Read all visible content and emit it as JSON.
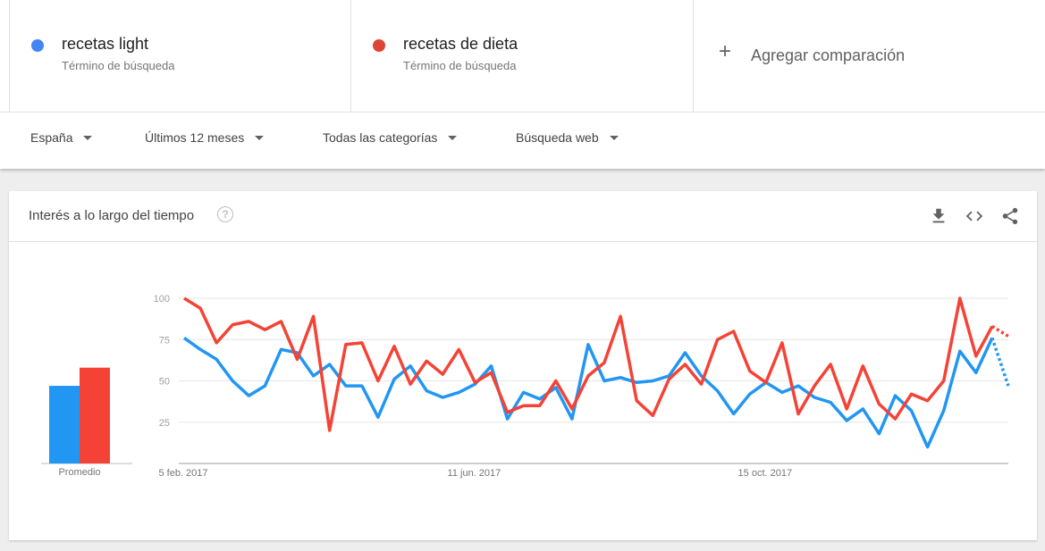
{
  "terms": [
    {
      "name": "recetas light",
      "subtitle": "Término de búsqueda",
      "color": "#4285f4"
    },
    {
      "name": "recetas de dieta",
      "subtitle": "Término de búsqueda",
      "color": "#db4437"
    }
  ],
  "add_comparison": {
    "label": "Agregar comparación",
    "icon": "plus-icon"
  },
  "filters": {
    "region": "España",
    "time": "Últimos 12 meses",
    "category": "Todas las categorías",
    "search_type": "Búsqueda web"
  },
  "card": {
    "title": "Interés a lo largo del tiempo",
    "help_icon": "?",
    "tools": [
      "download-icon",
      "embed-icon",
      "share-icon"
    ]
  },
  "chart_data": [
    {
      "type": "bar",
      "categories": [
        "Promedio"
      ],
      "series": [
        {
          "name": "recetas light",
          "values": [
            47
          ],
          "color": "#2196f3"
        },
        {
          "name": "recetas de dieta",
          "values": [
            58
          ],
          "color": "#f44336"
        }
      ],
      "ylim": [
        0,
        100
      ]
    },
    {
      "type": "line",
      "x_tick_labels": [
        "5 feb. 2017",
        "11 jun. 2017",
        "15 oct. 2017"
      ],
      "x_tick_indices": [
        0,
        18,
        36
      ],
      "y_ticks": [
        25,
        50,
        75,
        100
      ],
      "ylim": [
        0,
        100
      ],
      "grid": true,
      "partial_last_point": true,
      "series": [
        {
          "name": "recetas light",
          "color": "#2196f3",
          "values": [
            76,
            69,
            63,
            50,
            41,
            47,
            69,
            67,
            53,
            60,
            47,
            47,
            28,
            51,
            59,
            44,
            40,
            43,
            48,
            59,
            27,
            43,
            39,
            46,
            27,
            72,
            50,
            52,
            49,
            50,
            53,
            67,
            53,
            44,
            30,
            42,
            49,
            43,
            47,
            40,
            37,
            26,
            33,
            18,
            41,
            32,
            10,
            32,
            68,
            55,
            76,
            47
          ]
        },
        {
          "name": "recetas de dieta",
          "color": "#f44336",
          "values": [
            100,
            94,
            73,
            84,
            86,
            81,
            86,
            63,
            89,
            20,
            72,
            73,
            50,
            71,
            48,
            62,
            54,
            69,
            49,
            55,
            31,
            35,
            35,
            50,
            33,
            53,
            61,
            89,
            38,
            29,
            51,
            60,
            48,
            75,
            80,
            56,
            49,
            73,
            30,
            47,
            60,
            33,
            59,
            36,
            27,
            42,
            38,
            50,
            100,
            65,
            83,
            77
          ]
        }
      ]
    }
  ]
}
